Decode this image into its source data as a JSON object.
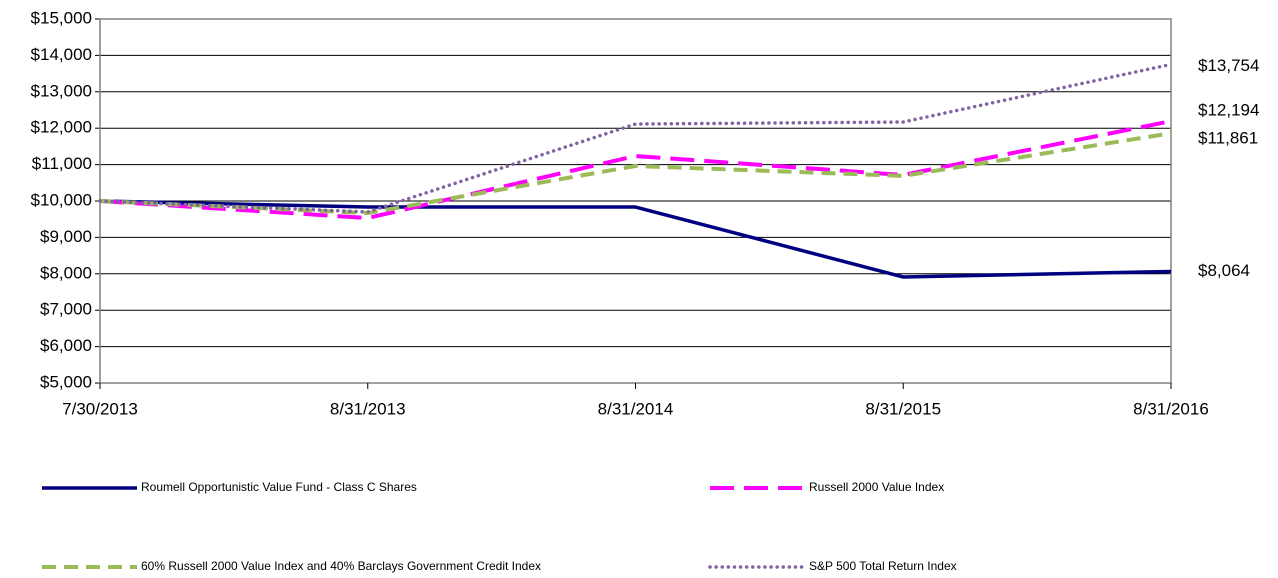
{
  "chart_data": {
    "type": "line",
    "categories": [
      "7/30/2013",
      "8/31/2013",
      "8/31/2014",
      "8/31/2015",
      "8/31/2016"
    ],
    "series": [
      {
        "name": "Roumell Opportunistic Value Fund - Class C Shares",
        "color": "#000080",
        "values": [
          10000,
          9835,
          9835,
          7912,
          8064
        ],
        "value_labels": [
          null,
          null,
          null,
          null,
          "$8,064"
        ]
      },
      {
        "name": "Russell 2000 Value Index",
        "color": "#ff00ff",
        "values": [
          10000,
          9533,
          11236,
          10714,
          12194
        ],
        "value_labels": [
          null,
          null,
          null,
          null,
          "$12,194"
        ]
      },
      {
        "name": "60% Russell 2000 Value Index and 40% Barclays Government Credit Index",
        "color": "#9bbb59",
        "values": [
          10000,
          9670,
          10962,
          10690,
          11861
        ],
        "value_labels": [
          null,
          null,
          null,
          null,
          "$11,861"
        ]
      },
      {
        "name": "S&P 500 Total Return Index",
        "color": "#8064a2",
        "values": [
          10000,
          9698,
          12115,
          12170,
          13754
        ],
        "value_labels": [
          null,
          null,
          null,
          null,
          "$13,754"
        ]
      }
    ],
    "ylim": [
      5000,
      15000
    ],
    "yticks": [
      {
        "value": 5000,
        "label": "$5,000"
      },
      {
        "value": 6000,
        "label": "$6,000"
      },
      {
        "value": 7000,
        "label": "$7,000"
      },
      {
        "value": 8000,
        "label": "$8,000"
      },
      {
        "value": 9000,
        "label": "$9,000"
      },
      {
        "value": 10000,
        "label": "$10,000"
      },
      {
        "value": 11000,
        "label": "$11,000"
      },
      {
        "value": 12000,
        "label": "$12,000"
      },
      {
        "value": 13000,
        "label": "$13,000"
      },
      {
        "value": 14000,
        "label": "$14,000"
      },
      {
        "value": 15000,
        "label": "$15,000"
      }
    ],
    "grid": true
  }
}
